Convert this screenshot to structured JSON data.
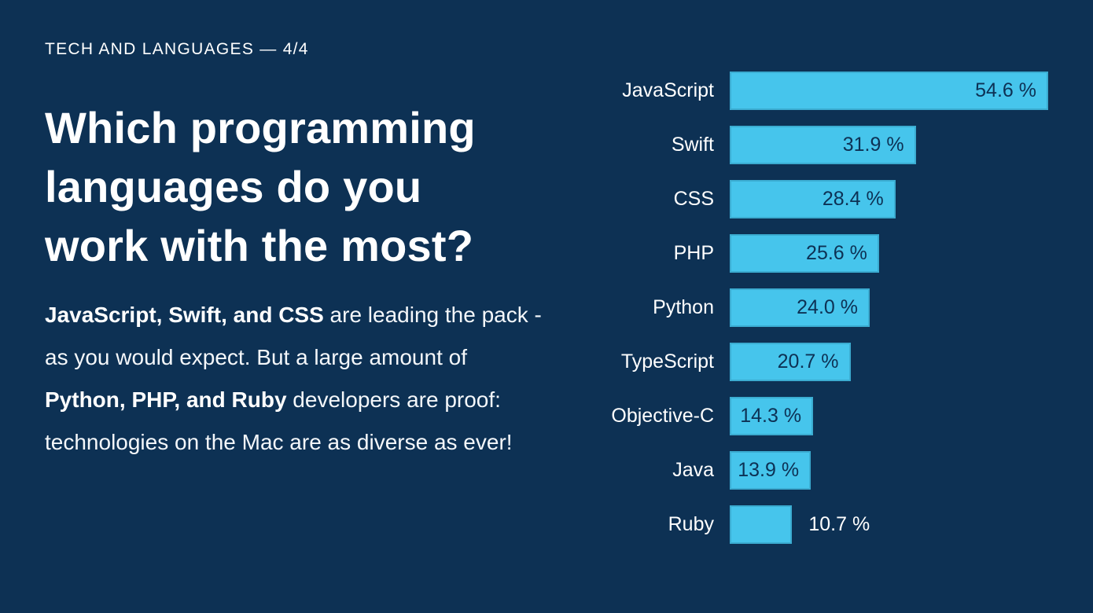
{
  "slide": {
    "eyebrow": "TECH AND LANGUAGES — 4/4",
    "title": "Which programming languages do you work with the most?",
    "title_lines": [
      "Which programming",
      "languages do you",
      "work with the most?"
    ],
    "body_segments": [
      {
        "text": "JavaScript, Swift, and CSS",
        "bold": true
      },
      {
        "text": " are leading the pack - as you would expect. But a large amount of ",
        "bold": false
      },
      {
        "text": "Python, PHP, and Ruby",
        "bold": true
      },
      {
        "text": " developers are proof: technologies on the Mac are as diverse as ever!",
        "bold": false
      }
    ]
  },
  "chart_data": {
    "type": "bar",
    "orientation": "horizontal",
    "title": "",
    "xlabel": "",
    "ylabel": "",
    "categories": [
      "JavaScript",
      "Swift",
      "CSS",
      "PHP",
      "Python",
      "TypeScript",
      "Objective-C",
      "Java",
      "Ruby"
    ],
    "values": [
      54.6,
      31.9,
      28.4,
      25.6,
      24.0,
      20.7,
      14.3,
      13.9,
      10.7
    ],
    "value_labels": [
      "54.6 %",
      "31.9 %",
      "28.4 %",
      "25.6 %",
      "24.0 %",
      "20.7 %",
      "14.3 %",
      "13.9 %",
      "10.7 %"
    ],
    "value_suffix": " %",
    "xlim": [
      0,
      54.6
    ],
    "grid": false,
    "legend": false,
    "bar_color": "#46c5ec",
    "category_label_color": "#ffffff",
    "value_label_color_inside": "#0d3154",
    "value_label_color_outside": "#ffffff"
  },
  "colors": {
    "background": "#0d3154",
    "accent": "#46c5ec",
    "text": "#ffffff"
  }
}
